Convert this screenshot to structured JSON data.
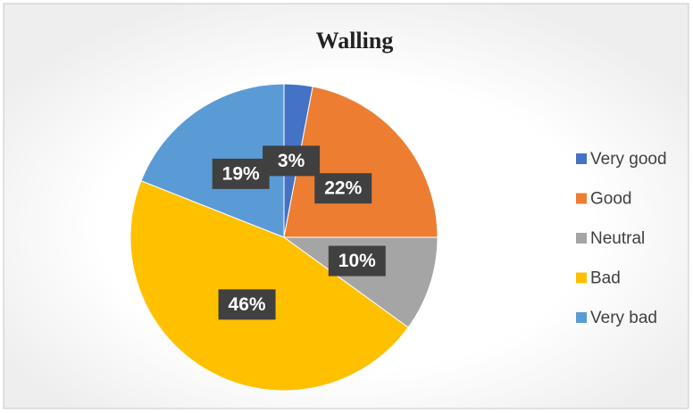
{
  "chart_data": {
    "type": "pie",
    "title": "Walling",
    "categories": [
      "Very good",
      "Good",
      "Neutral",
      "Bad",
      "Very bad"
    ],
    "values": [
      3,
      22,
      10,
      46,
      19
    ],
    "value_labels": [
      "3%",
      "22%",
      "10%",
      "46%",
      "19%"
    ],
    "colors": [
      "#4472c4",
      "#ed7d31",
      "#a5a5a5",
      "#ffc000",
      "#5b9bd5"
    ],
    "legend": "right"
  }
}
